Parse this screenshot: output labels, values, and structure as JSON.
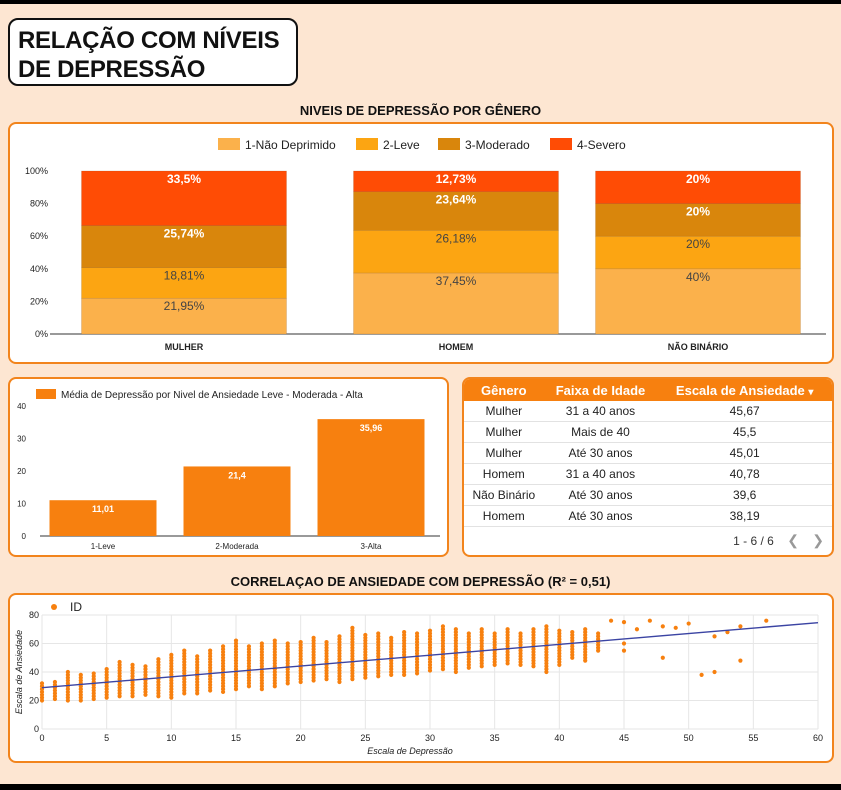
{
  "page": {
    "title_line1": "RELAÇÃO COM NÍVEIS",
    "title_line2": "DE DEPRESSÃO"
  },
  "colors": {
    "nao_deprimido": "#fbb14b",
    "leve": "#fca512",
    "moderado": "#d9860c",
    "severo": "#ff4c05",
    "accent": "#f7800f",
    "trend": "#3b44a3"
  },
  "chart_data": [
    {
      "type": "bar",
      "stacked": true,
      "title": "NIVEIS DE DEPRESSÃO POR GÊNERO",
      "categories": [
        "MULHER",
        "HOMEM",
        "NÃO BINÁRIO"
      ],
      "series": [
        {
          "name": "1-Não Deprimido",
          "values": [
            21.95,
            37.45,
            40
          ],
          "labels": [
            "21,95%",
            "37,45%",
            "40%"
          ]
        },
        {
          "name": "2-Leve",
          "values": [
            18.81,
            26.18,
            20
          ],
          "labels": [
            "18,81%",
            "26,18%",
            "20%"
          ]
        },
        {
          "name": "3-Moderado",
          "values": [
            25.74,
            23.64,
            20
          ],
          "labels": [
            "25,74%",
            "23,64%",
            "20%"
          ]
        },
        {
          "name": "4-Severo",
          "values": [
            33.5,
            12.73,
            20
          ],
          "labels": [
            "33,5%",
            "12,73%",
            "20%"
          ]
        }
      ],
      "yticks": [
        "0%",
        "20%",
        "40%",
        "60%",
        "80%",
        "100%"
      ],
      "ylim": [
        0,
        100
      ],
      "legend": "top"
    },
    {
      "type": "bar",
      "series_name": "Média de Depressão por Nivel de Ansiedade Leve - Moderada - Alta",
      "categories": [
        "1-Leve",
        "2-Moderada",
        "3-Alta"
      ],
      "values": [
        11.01,
        21.4,
        35.96
      ],
      "labels": [
        "11,01",
        "21,4",
        "35,96"
      ],
      "yticks": [
        "0",
        "10",
        "20",
        "30",
        "40"
      ],
      "ylim": [
        0,
        40
      ],
      "legend": "top-left"
    },
    {
      "type": "table",
      "columns": [
        "Gênero",
        "Faixa de Idade",
        "Escala de Ansiedade"
      ],
      "sort_arrow": "▾",
      "rows": [
        [
          "Mulher",
          "31 a 40 anos",
          "45,67"
        ],
        [
          "Mulher",
          "Mais de 40",
          "45,5"
        ],
        [
          "Mulher",
          "Até 30 anos",
          "45,01"
        ],
        [
          "Homem",
          "31 a 40 anos",
          "40,78"
        ],
        [
          "Não Binário",
          "Até 30 anos",
          "39,6"
        ],
        [
          "Homem",
          "Até 30 anos",
          "38,19"
        ]
      ],
      "pagination": "1 - 6 / 6"
    },
    {
      "type": "scatter",
      "title": "CORRELAÇAO DE ANSIEDADE COM DEPRESSÃO (R² = 0,51)",
      "series_name": "ID",
      "xlabel": "Escala de Depressão",
      "ylabel": "Escala de Ansiedade",
      "xlim": [
        0,
        60
      ],
      "ylim": [
        0,
        80
      ],
      "xticks": [
        0,
        5,
        10,
        15,
        20,
        25,
        30,
        35,
        40,
        45,
        50,
        55,
        60
      ],
      "yticks": [
        0,
        20,
        40,
        60,
        80
      ],
      "trendline": {
        "intercept": 29,
        "slope": 0.76
      },
      "columns": [
        {
          "x": 0,
          "y": [
            20,
            32
          ]
        },
        {
          "x": 1,
          "y": [
            21,
            33
          ]
        },
        {
          "x": 2,
          "y": [
            20,
            40
          ]
        },
        {
          "x": 3,
          "y": [
            20,
            38
          ]
        },
        {
          "x": 4,
          "y": [
            21,
            39
          ]
        },
        {
          "x": 5,
          "y": [
            22,
            42
          ]
        },
        {
          "x": 6,
          "y": [
            23,
            48
          ]
        },
        {
          "x": 7,
          "y": [
            23,
            46
          ]
        },
        {
          "x": 8,
          "y": [
            24,
            45
          ]
        },
        {
          "x": 9,
          "y": [
            23,
            50
          ]
        },
        {
          "x": 10,
          "y": [
            22,
            52
          ]
        },
        {
          "x": 11,
          "y": [
            25,
            55
          ]
        },
        {
          "x": 12,
          "y": [
            25,
            52
          ]
        },
        {
          "x": 13,
          "y": [
            27,
            55
          ]
        },
        {
          "x": 14,
          "y": [
            26,
            58
          ]
        },
        {
          "x": 15,
          "y": [
            28,
            62
          ]
        },
        {
          "x": 16,
          "y": [
            30,
            58
          ]
        },
        {
          "x": 17,
          "y": [
            28,
            60
          ]
        },
        {
          "x": 18,
          "y": [
            30,
            62
          ]
        },
        {
          "x": 19,
          "y": [
            32,
            60
          ]
        },
        {
          "x": 20,
          "y": [
            33,
            62
          ]
        },
        {
          "x": 21,
          "y": [
            34,
            65
          ]
        },
        {
          "x": 22,
          "y": [
            35,
            62
          ]
        },
        {
          "x": 23,
          "y": [
            33,
            65
          ]
        },
        {
          "x": 24,
          "y": [
            35,
            72
          ]
        },
        {
          "x": 25,
          "y": [
            36,
            66
          ]
        },
        {
          "x": 26,
          "y": [
            37,
            68
          ]
        },
        {
          "x": 27,
          "y": [
            38,
            65
          ]
        },
        {
          "x": 28,
          "y": [
            38,
            68
          ]
        },
        {
          "x": 29,
          "y": [
            39,
            67
          ]
        },
        {
          "x": 30,
          "y": [
            41,
            70
          ]
        },
        {
          "x": 31,
          "y": [
            42,
            72
          ]
        },
        {
          "x": 32,
          "y": [
            40,
            70
          ]
        },
        {
          "x": 33,
          "y": [
            43,
            68
          ]
        },
        {
          "x": 34,
          "y": [
            44,
            70
          ]
        },
        {
          "x": 35,
          "y": [
            45,
            68
          ]
        },
        {
          "x": 36,
          "y": [
            46,
            70
          ]
        },
        {
          "x": 37,
          "y": [
            45,
            68
          ]
        },
        {
          "x": 38,
          "y": [
            44,
            70
          ]
        },
        {
          "x": 39,
          "y": [
            40,
            72
          ]
        },
        {
          "x": 40,
          "y": [
            45,
            70
          ]
        },
        {
          "x": 41,
          "y": [
            50,
            68
          ]
        },
        {
          "x": 42,
          "y": [
            48,
            70
          ]
        },
        {
          "x": 43,
          "y": [
            55,
            68
          ]
        }
      ],
      "points": [
        [
          44,
          76
        ],
        [
          45,
          75
        ],
        [
          45,
          55
        ],
        [
          45,
          60
        ],
        [
          46,
          70
        ],
        [
          47,
          76
        ],
        [
          48,
          72
        ],
        [
          48,
          50
        ],
        [
          49,
          71
        ],
        [
          50,
          74
        ],
        [
          51,
          38
        ],
        [
          52,
          40
        ],
        [
          52,
          65
        ],
        [
          53,
          68
        ],
        [
          54,
          72
        ],
        [
          54,
          48
        ],
        [
          56,
          76
        ]
      ]
    }
  ]
}
